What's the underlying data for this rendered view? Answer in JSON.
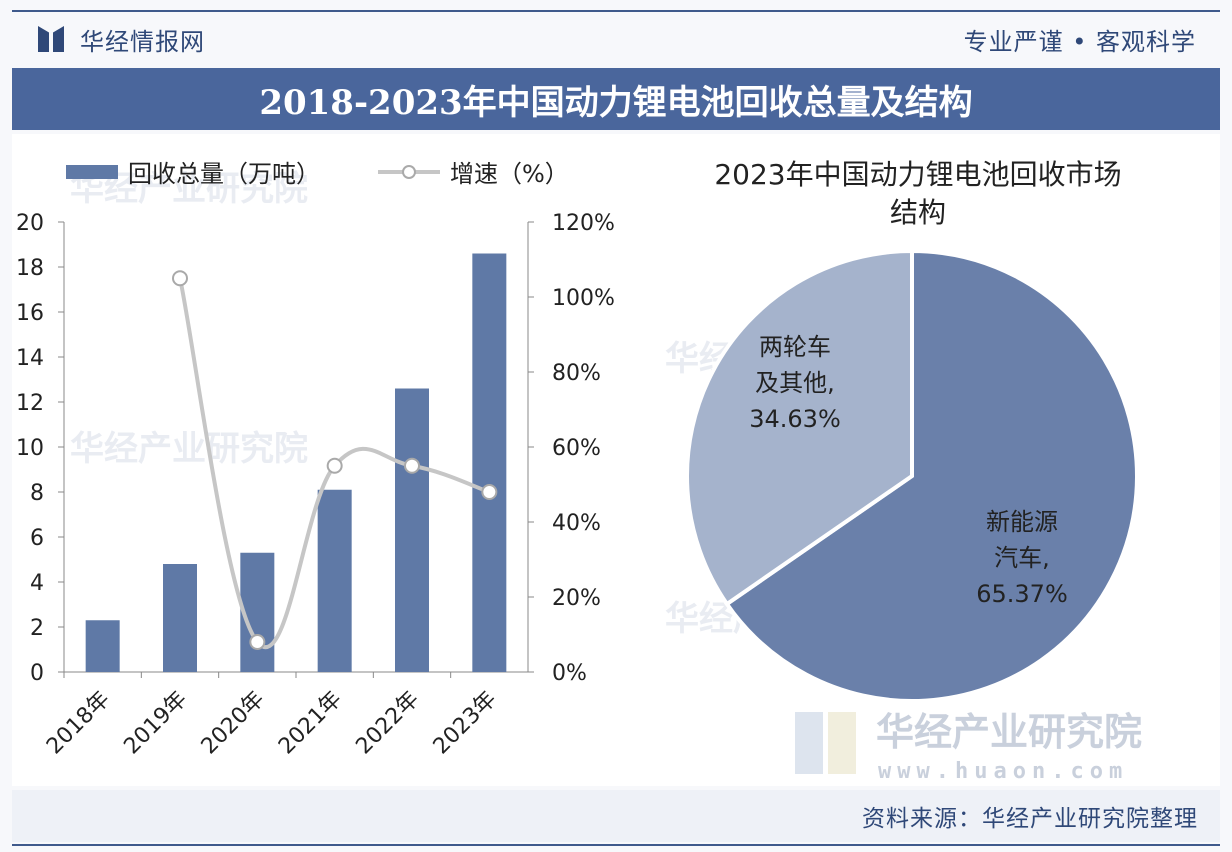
{
  "header": {
    "brand": "华经情报网",
    "slogan": "专业严谨 • 客观科学"
  },
  "title": "2018-2023年中国动力锂电池回收总量及结构",
  "footer": {
    "source": "资料来源：华经产业研究院整理"
  },
  "watermark": {
    "name": "华经产业研究院",
    "url": "www.huaon.com"
  },
  "colors": {
    "bar": "#5f79a6",
    "line": "#c6c6c6",
    "pie_main": "#6a80aa",
    "pie_secondary": "#a5b3cc",
    "title_bg": "#4a669c"
  },
  "chart_data": [
    {
      "type": "bar",
      "categories": [
        "2018年",
        "2019年",
        "2020年",
        "2021年",
        "2022年",
        "2023年"
      ],
      "series": [
        {
          "name": "回收总量（万吨）",
          "type": "bar",
          "axis": "left",
          "values": [
            2.3,
            4.8,
            5.3,
            8.1,
            12.6,
            18.6
          ]
        },
        {
          "name": "增速（%）",
          "type": "line",
          "axis": "right",
          "values": [
            null,
            105,
            8,
            55,
            55,
            48
          ]
        }
      ],
      "ylim": [
        0,
        20
      ],
      "yticks": [
        "0",
        "2",
        "4",
        "6",
        "8",
        "10",
        "12",
        "14",
        "16",
        "18",
        "20"
      ],
      "y2lim": [
        0,
        120
      ],
      "y2ticks": [
        "0%",
        "20%",
        "40%",
        "60%",
        "80%",
        "100%",
        "120%"
      ],
      "legend": "top-left",
      "grid": false
    },
    {
      "type": "pie",
      "title": "2023年中国动力锂电池回收市场结构",
      "slices": [
        {
          "label": "新能源汽车",
          "label_lines": [
            "新能源",
            "汽车,",
            "65.37%"
          ],
          "value": 65.37
        },
        {
          "label": "两轮车及其他",
          "label_lines": [
            "两轮车",
            "及其他,",
            "34.63%"
          ],
          "value": 34.63
        }
      ]
    }
  ]
}
